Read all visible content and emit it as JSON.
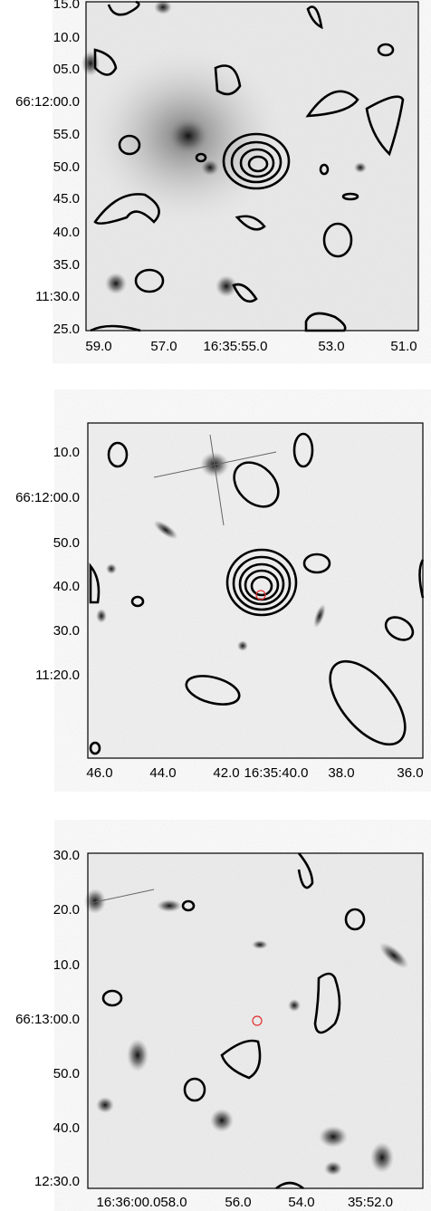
{
  "panels": [
    {
      "yticks": [
        "15.0",
        "10.0",
        "05.0",
        "66:12:00.0",
        "55.0",
        "50.0",
        "45.0",
        "40.0",
        "35.0",
        "11:30.0",
        "25.0"
      ],
      "xticks": [
        "59.0",
        "57.0",
        "16:35:55.0",
        "53.0",
        "51.0"
      ]
    },
    {
      "yticks": [
        "10.0",
        "66:12:00.0",
        "50.0",
        "40.0",
        "30.0",
        "11:20.0"
      ],
      "xticks": [
        "46.0",
        "44.0",
        "42.0",
        "16:35:40.0",
        "38.0",
        "36.0"
      ]
    },
    {
      "yticks": [
        "30.0",
        "20.0",
        "10.0",
        "66:13:00.0",
        "50.0",
        "40.0",
        "12:30.0"
      ],
      "xticks": [
        "16:36:00.0",
        "58.0",
        "56.0",
        "54.0",
        "35:52.0"
      ]
    }
  ]
}
